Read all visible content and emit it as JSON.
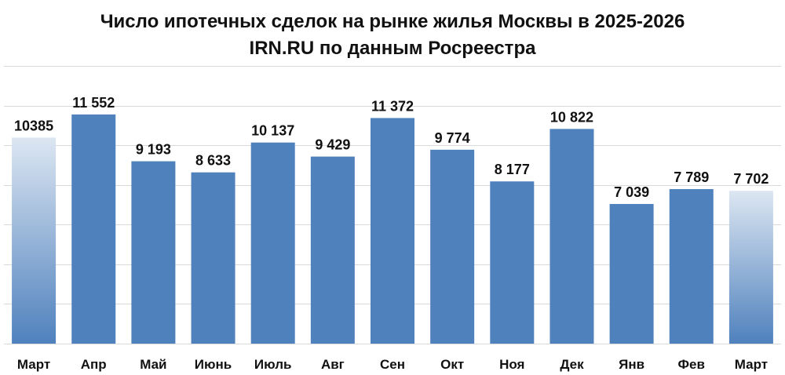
{
  "chart_data": {
    "type": "bar",
    "title": "Число ипотечных сделок на рынке жилья Москвы в 2025-2026",
    "subtitle": "IRN.RU по данным Росреестра",
    "categories": [
      "Март",
      "Апр",
      "Май",
      "Июнь",
      "Июль",
      "Авг",
      "Сен",
      "Окт",
      "Ноя",
      "Дек",
      "Янв",
      "Фев",
      "Март"
    ],
    "values": [
      10385,
      11552,
      9193,
      8633,
      10137,
      9429,
      11372,
      9774,
      8177,
      10822,
      7039,
      7789,
      7702
    ],
    "value_labels": [
      "10385",
      "11 552",
      "9 193",
      "8 633",
      "10 137",
      "9 429",
      "11 372",
      "9 774",
      "8 177",
      "10 822",
      "7 039",
      "7 789",
      "7 702"
    ],
    "highlight_indices": [
      0,
      12
    ],
    "ylim": [
      0,
      14000
    ],
    "y_grid_step": 2000,
    "grid": true,
    "y_tick_labels_visible": false,
    "legend": "none",
    "colors": {
      "bar": "#4F81BD",
      "highlight_top": "#DCE6F2",
      "highlight_bottom": "#4F81BD",
      "grid": "#D9D9D9",
      "text": "#111111"
    }
  }
}
